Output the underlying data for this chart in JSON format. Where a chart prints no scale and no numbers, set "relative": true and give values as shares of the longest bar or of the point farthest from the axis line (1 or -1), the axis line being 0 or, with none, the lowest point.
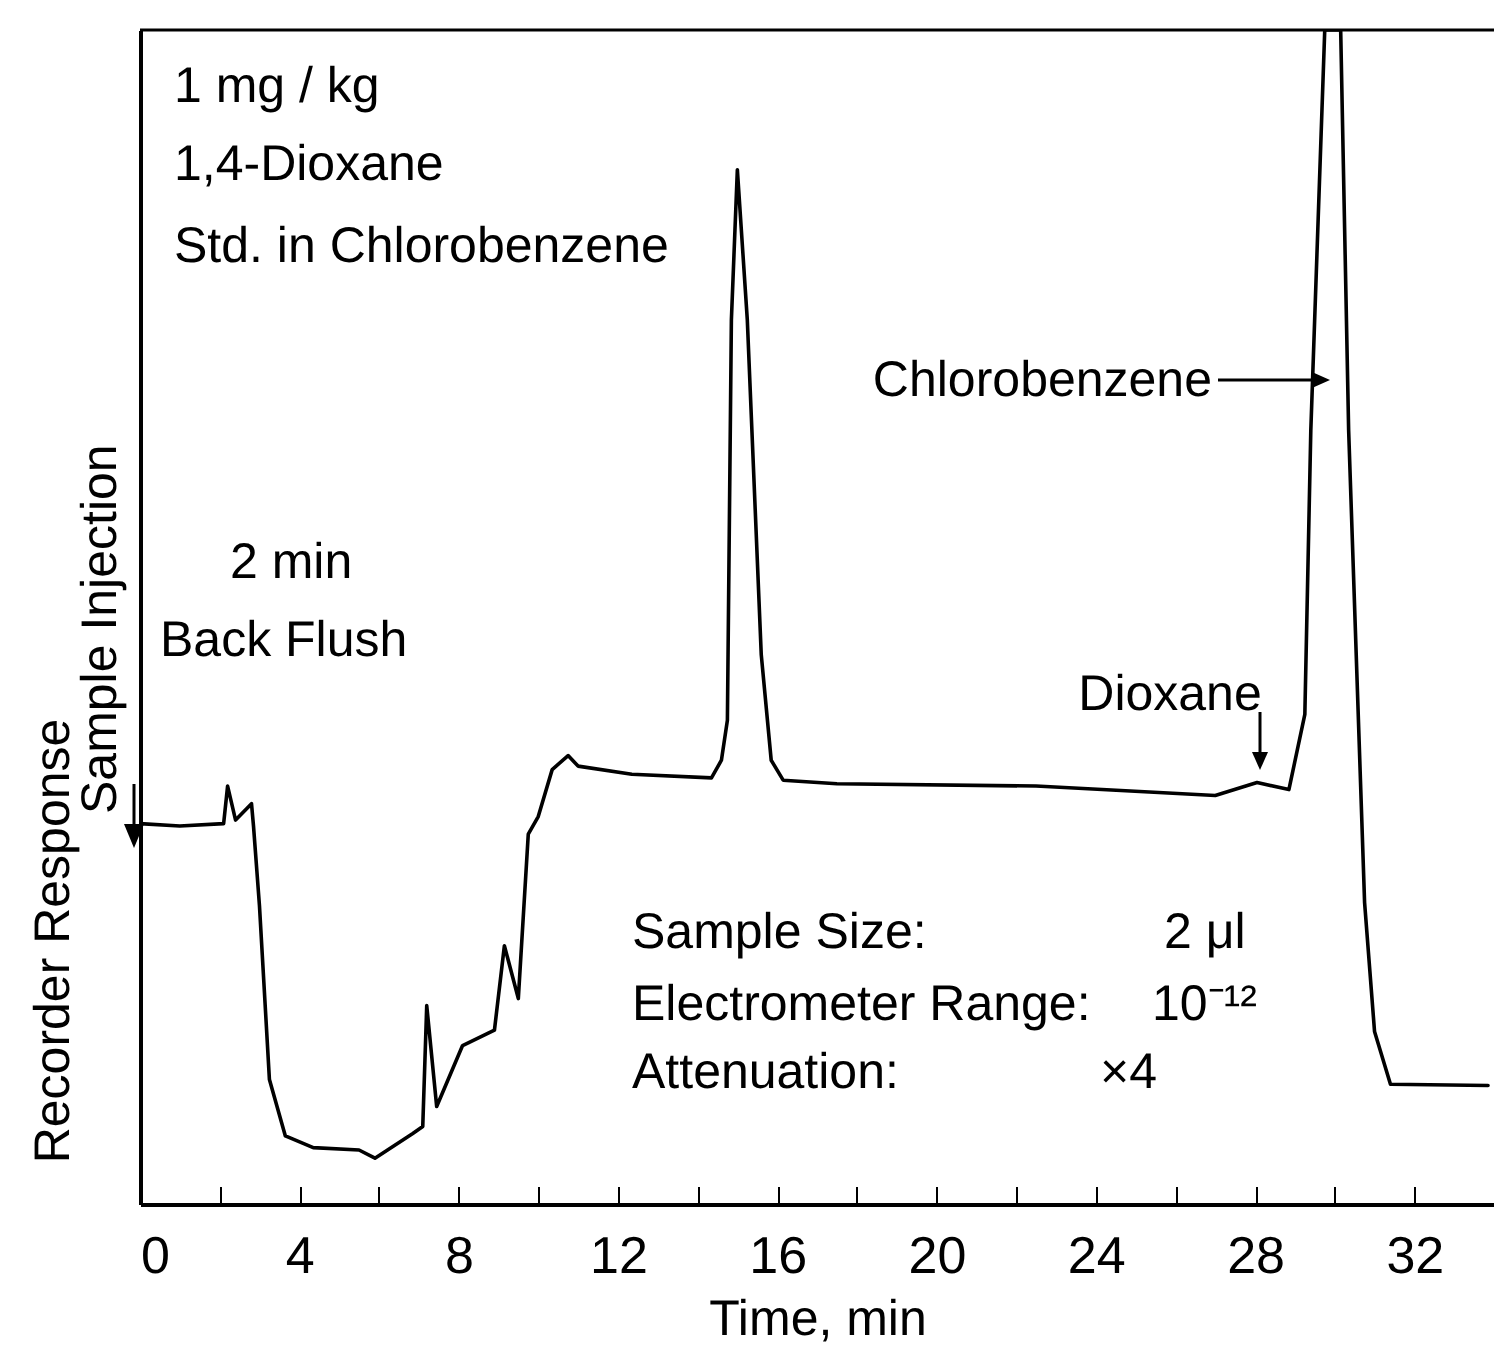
{
  "chart_data": {
    "type": "line",
    "relative": true,
    "xlabel": "Time, min",
    "ylabel": "Recorder Response",
    "tick_labels": "x",
    "xlim": [
      0,
      34
    ],
    "xticks": [
      0,
      {
        "value": 2,
        "label": null
      },
      4,
      {
        "value": 6,
        "label": null
      },
      8,
      {
        "value": 10,
        "label": null
      },
      12,
      {
        "value": 14,
        "label": null
      },
      16,
      {
        "value": 18,
        "label": null
      },
      20,
      {
        "value": 22,
        "label": null
      },
      24,
      {
        "value": 26,
        "label": null
      },
      28,
      {
        "value": 30,
        "label": null
      },
      32
    ],
    "x": [
      0,
      1.0,
      2.1,
      2.2,
      2.4,
      2.8,
      2.85,
      3.0,
      3.25,
      3.65,
      4.35,
      5.5,
      5.9,
      6.85,
      7.1,
      7.2,
      7.45,
      8.1,
      8.9,
      9.15,
      9.5,
      9.75,
      10.0,
      10.35,
      10.75,
      11.0,
      12.35,
      14.35,
      14.6,
      14.75,
      14.85,
      15.0,
      15.25,
      15.6,
      15.85,
      16.15,
      17.5,
      22.5,
      27.0,
      28.05,
      28.85,
      29.25,
      29.4,
      29.75,
      30.15,
      30.35,
      30.75,
      31.0,
      31.4,
      33.85
    ],
    "series": [
      {
        "color": "#000000",
        "values": [
          0.324,
          0.322,
          0.324,
          0.356,
          0.327,
          0.341,
          0.322,
          0.254,
          0.106,
          0.058,
          0.048,
          0.046,
          0.039,
          0.06,
          0.066,
          0.169,
          0.083,
          0.135,
          0.148,
          0.22,
          0.175,
          0.315,
          0.33,
          0.37,
          0.382,
          0.373,
          0.366,
          0.363,
          0.378,
          0.412,
          0.753,
          0.881,
          0.753,
          0.468,
          0.378,
          0.361,
          0.358,
          0.356,
          0.348,
          0.359,
          0.353,
          0.417,
          0.659,
          1,
          1,
          0.659,
          0.257,
          0.147,
          0.102,
          0.101
        ]
      }
    ],
    "annotations": [
      "1 mg / kg",
      "1,4-Dioxane",
      "Std. in Chlorobenzene",
      "2 min",
      "Back Flush",
      "Sample Size:",
      "2 μl",
      "Electrometer Range:",
      "10⁻¹²",
      "Attenuation:",
      "×4",
      "Sample Injection",
      "Chlorobenzene",
      "Dioxane"
    ]
  }
}
